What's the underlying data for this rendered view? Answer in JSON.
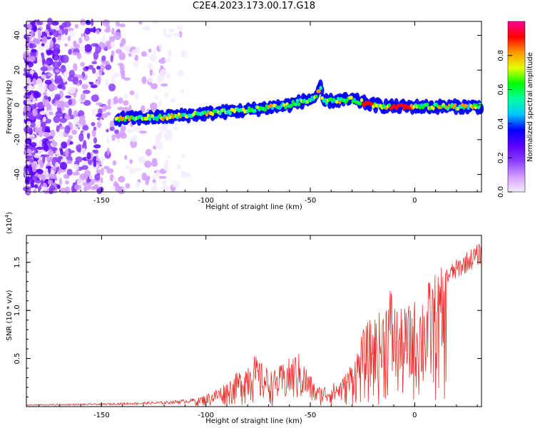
{
  "title": "C2E4.2023.173.00.17.G18",
  "chart_data": [
    {
      "type": "heatmap",
      "xlabel": "Height of straight line (km)",
      "ylabel": "Frequency (Hz)",
      "xlim": [
        -186,
        32
      ],
      "ylim": [
        -50,
        48
      ],
      "x_ticks": [
        -150,
        -100,
        -50,
        0
      ],
      "y_ticks": [
        -40,
        -20,
        0,
        20,
        40
      ],
      "colorbar": {
        "label": "Normalized spectral amplitude",
        "range": [
          0,
          1
        ],
        "ticks": [
          0.0,
          0.2,
          0.4,
          0.6,
          0.8
        ],
        "colors": [
          "#f4ecff",
          "#d29cff",
          "#8a3cff",
          "#5a00ff",
          "#0000ff",
          "#00c8ff",
          "#00ffa0",
          "#00ff00",
          "#e6ff00",
          "#ff9600",
          "#ff0000",
          "#ff0096"
        ]
      },
      "ridge": [
        {
          "x": -143,
          "y": -8
        },
        {
          "x": -120,
          "y": -7
        },
        {
          "x": -100,
          "y": -5
        },
        {
          "x": -80,
          "y": -3
        },
        {
          "x": -60,
          "y": 0
        },
        {
          "x": -48,
          "y": 4
        },
        {
          "x": -45,
          "y": 10
        },
        {
          "x": -44,
          "y": 2
        },
        {
          "x": -30,
          "y": 3
        },
        {
          "x": -20,
          "y": 0
        },
        {
          "x": -10,
          "y": -1
        },
        {
          "x": 0,
          "y": -1
        },
        {
          "x": 30,
          "y": -1
        }
      ]
    },
    {
      "type": "line",
      "xlabel": "Height of straight line (km)",
      "ylabel": "SNR (10 * v/v)",
      "y_multiplier": "(x10",
      "y_multiplier_exp": "4",
      "y_multiplier_close": ")",
      "xlim": [
        -186,
        32
      ],
      "ylim": [
        0,
        1.78
      ],
      "x_ticks": [
        -150,
        -100,
        -50,
        0
      ],
      "y_ticks": [
        0.5,
        1.0,
        1.5
      ],
      "series": [
        {
          "color": "#e8322d",
          "envelope": [
            {
              "x": -186,
              "y": 0.02
            },
            {
              "x": -150,
              "y": 0.03
            },
            {
              "x": -120,
              "y": 0.05
            },
            {
              "x": -105,
              "y": 0.08
            },
            {
              "x": -97,
              "y": 0.15
            },
            {
              "x": -90,
              "y": 0.25
            },
            {
              "x": -82,
              "y": 0.4
            },
            {
              "x": -78,
              "y": 0.55
            },
            {
              "x": -74,
              "y": 0.45
            },
            {
              "x": -68,
              "y": 0.35
            },
            {
              "x": -62,
              "y": 0.45
            },
            {
              "x": -56,
              "y": 0.55
            },
            {
              "x": -52,
              "y": 0.4
            },
            {
              "x": -47,
              "y": 0.2
            },
            {
              "x": -40,
              "y": 0.22
            },
            {
              "x": -34,
              "y": 0.3
            },
            {
              "x": -28,
              "y": 0.55
            },
            {
              "x": -24,
              "y": 0.8
            },
            {
              "x": -20,
              "y": 0.9
            },
            {
              "x": -16,
              "y": 0.95
            },
            {
              "x": -12,
              "y": 1.25
            },
            {
              "x": -8,
              "y": 0.95
            },
            {
              "x": -4,
              "y": 1.0
            },
            {
              "x": 2,
              "y": 1.1
            },
            {
              "x": 8,
              "y": 1.3
            },
            {
              "x": 14,
              "y": 1.4
            },
            {
              "x": 20,
              "y": 1.5
            },
            {
              "x": 26,
              "y": 1.6
            },
            {
              "x": 32,
              "y": 1.68
            }
          ]
        }
      ]
    }
  ]
}
